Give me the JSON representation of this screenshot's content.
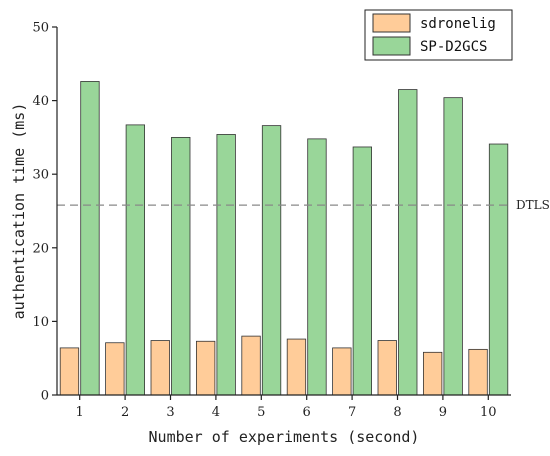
{
  "chart_data": {
    "type": "bar",
    "categories": [
      "1",
      "2",
      "3",
      "4",
      "5",
      "6",
      "7",
      "8",
      "9",
      "10"
    ],
    "series": [
      {
        "name": "sdronelig",
        "values": [
          6.4,
          7.1,
          7.4,
          7.3,
          8.0,
          7.6,
          6.4,
          7.4,
          5.8,
          6.2
        ]
      },
      {
        "name": "SP-D2GCS",
        "values": [
          42.6,
          36.7,
          35.0,
          35.4,
          36.6,
          34.8,
          33.7,
          41.5,
          40.4,
          34.1
        ]
      }
    ],
    "xlabel": "Number of experiments (second)",
    "ylabel": "authentication time (ms)",
    "ylim": [
      0,
      50
    ],
    "yticks": [
      0,
      10,
      20,
      30,
      40,
      50
    ],
    "reference_line": {
      "label": "DTLS",
      "value": 25.8,
      "style": "dashed"
    },
    "legend_position": "top-right",
    "grid": false,
    "colors": {
      "sdronelig": "#FFCC99",
      "SP-D2GCS": "#99D699",
      "bar_stroke": "#333333",
      "reference": "#888888"
    }
  }
}
